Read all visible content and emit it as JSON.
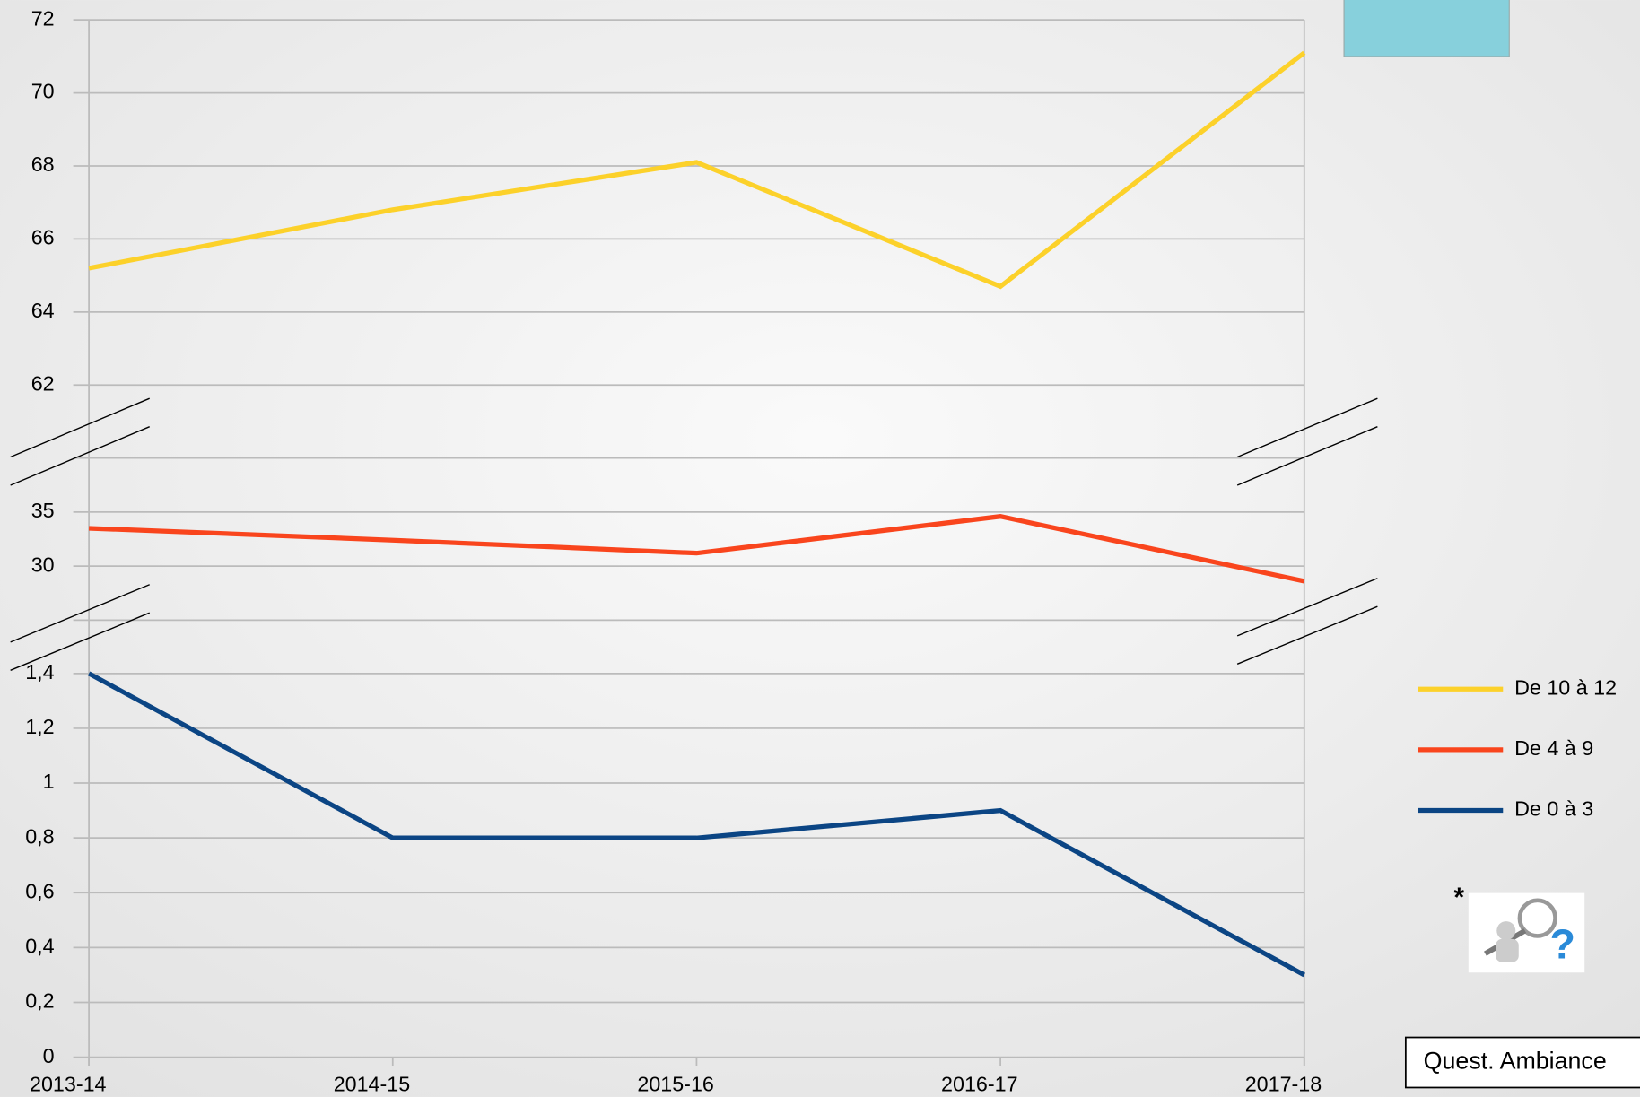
{
  "chart_data": {
    "type": "line",
    "categories": [
      "2013-14",
      "2014-15",
      "2015-16",
      "2016-17",
      "2017-18"
    ],
    "grid": true,
    "panels": [
      {
        "ylim": [
          60,
          72
        ],
        "yticks": [
          62,
          64,
          66,
          68,
          70,
          72
        ],
        "series": [
          {
            "name": "De 10 à 12",
            "color": "#fcd12a",
            "values": [
              65.2,
              66.8,
              68.1,
              64.7,
              71.1
            ]
          }
        ]
      },
      {
        "ylim": [
          25,
          40
        ],
        "yticks": [
          30,
          35
        ],
        "series": [
          {
            "name": "De 4 à 9",
            "color": "#f9451d",
            "values": [
              33.5,
              32.4,
              31.2,
              34.6,
              28.6
            ]
          }
        ]
      },
      {
        "ylim": [
          0,
          1.4
        ],
        "yticks": [
          0,
          {
            "value": 0.2,
            "label": "0,2"
          },
          {
            "value": 0.4,
            "label": "0,4"
          },
          {
            "value": 0.6,
            "label": "0,6"
          },
          {
            "value": 0.8,
            "label": "0,8"
          },
          1,
          {
            "value": 1.2,
            "label": "1,2"
          },
          {
            "value": 1.4,
            "label": "1,4"
          }
        ],
        "series": [
          {
            "name": "De 0 à 3",
            "color": "#0b4584",
            "values": [
              1.4,
              0.8,
              0.8,
              0.9,
              0.3
            ]
          }
        ]
      }
    ]
  },
  "note": "*",
  "button": "Quest. Ambiance"
}
